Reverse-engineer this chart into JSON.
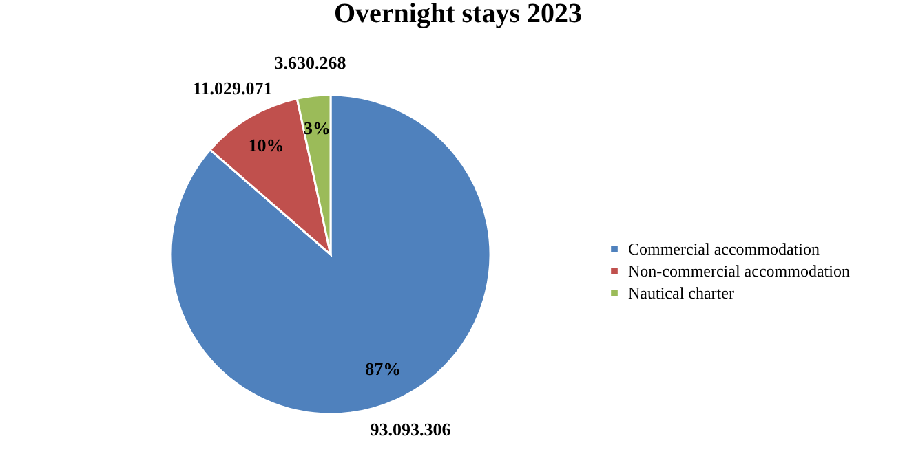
{
  "chart_data": {
    "type": "pie",
    "title": "Overnight stays 2023",
    "categories": [
      "Commercial accommodation",
      "Non-commercial accommodation",
      "Nautical charter"
    ],
    "values": [
      93093306,
      11029071,
      3630268
    ],
    "colors": [
      "#4f81bd",
      "#c0504d",
      "#9bbb59"
    ],
    "value_labels": [
      "93.093.306",
      "11.029.071",
      "3.630.268"
    ],
    "annotations": [
      {
        "text": "87%",
        "x": "Commercial accommodation"
      },
      {
        "text": "10%",
        "x": "Non-commercial accommodation"
      },
      {
        "text": "3%",
        "x": "Nautical charter"
      }
    ],
    "legend": "right"
  }
}
